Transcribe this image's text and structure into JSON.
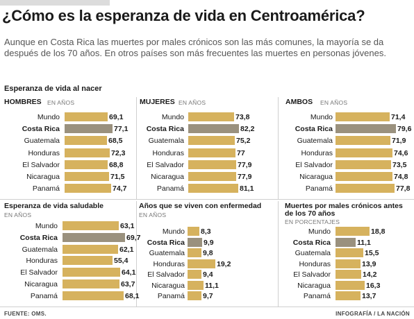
{
  "title": "¿Cómo es la esperanza de vida en Centroamérica?",
  "intro": "Aunque en Costa Rica las muertes por males crónicos son las más comunes, la mayoría se da después de los 70 años. En otros países son más frecuentes las muertes en personas jóvenes.",
  "section_title": "Esperanza de vida al nacer",
  "footer": {
    "source": "FUENTE: OMS.",
    "credit": "INFOGRAFÍA / LA NACIÓN"
  },
  "colors": {
    "bar": "#d6b25e",
    "highlight_bar": "#9a917e"
  },
  "chart_data": [
    {
      "type": "bar",
      "title": "HOMBRES",
      "unit": "EN AÑOS",
      "categories": [
        "Mundo",
        "Costa Rica",
        "Guatemala",
        "Honduras",
        "El Salvador",
        "Nicaragua",
        "Panamá"
      ],
      "values": [
        69.1,
        77.1,
        68.5,
        72.3,
        68.8,
        71.5,
        74.7
      ],
      "labels": [
        "69,1",
        "77,1",
        "68,5",
        "72,3",
        "68,8",
        "71,5",
        "74,7"
      ],
      "highlight": "Costa Rica"
    },
    {
      "type": "bar",
      "title": "MUJERES",
      "unit": "EN AÑOS",
      "categories": [
        "Mundo",
        "Costa Rica",
        "Guatemala",
        "Honduras",
        "El Salvador",
        "Nicaragua",
        "Panamá"
      ],
      "values": [
        73.8,
        82.2,
        75.2,
        77,
        77.9,
        77.9,
        81.1
      ],
      "labels": [
        "73,8",
        "82,2",
        "75,2",
        "77",
        "77,9",
        "77,9",
        "81,1"
      ],
      "highlight": "Costa Rica"
    },
    {
      "type": "bar",
      "title": "AMBOS",
      "unit": "EN AÑOS",
      "categories": [
        "Mundo",
        "Costa Rica",
        "Guatemala",
        "Honduras",
        "El Salvador",
        "Nicaragua",
        "Panamá"
      ],
      "values": [
        71.4,
        79.6,
        71.9,
        74.6,
        73.5,
        74.8,
        77.8
      ],
      "labels": [
        "71,4",
        "79,6",
        "71,9",
        "74,6",
        "73,5",
        "74,8",
        "77,8"
      ],
      "highlight": "Costa Rica"
    },
    {
      "type": "bar",
      "title": "Esperanza de vida saludable",
      "unit": "EN AÑOS",
      "categories": [
        "Mundo",
        "Costa Rica",
        "Guatemala",
        "Honduras",
        "El Salvador",
        "Nicaragua",
        "Panamá"
      ],
      "values": [
        63.1,
        69.7,
        62.1,
        55.4,
        64.1,
        63.7,
        68.1
      ],
      "labels": [
        "63,1",
        "69,7",
        "62,1",
        "55,4",
        "64,1",
        "63,7",
        "68,1"
      ],
      "highlight": "Costa Rica"
    },
    {
      "type": "bar",
      "title": "Años que se viven con enfermedad",
      "unit": "EN AÑOS",
      "categories": [
        "Mundo",
        "Costa Rica",
        "Guatemala",
        "Honduras",
        "El Salvador",
        "Nicaragua",
        "Panamá"
      ],
      "values": [
        8.3,
        9.9,
        9.8,
        19.2,
        9.4,
        11.1,
        9.7
      ],
      "labels": [
        "8,3",
        "9,9",
        "9,8",
        "19,2",
        "9,4",
        "11,1",
        "9,7"
      ],
      "highlight": "Costa Rica"
    },
    {
      "type": "bar",
      "title": "Muertes por males crónicos antes de los 70 años",
      "unit": "EN PORCENTAJES",
      "categories": [
        "Mundo",
        "Costa Rica",
        "Guatemala",
        "Honduras",
        "El Salvador",
        "Nicaragua",
        "Panamá"
      ],
      "values": [
        18.8,
        11.1,
        15.5,
        13.9,
        14.2,
        16.3,
        13.7
      ],
      "labels": [
        "18,8",
        "11,1",
        "15,5",
        "13,9",
        "14,2",
        "16,3",
        "13,7"
      ],
      "highlight": "Costa Rica"
    }
  ]
}
